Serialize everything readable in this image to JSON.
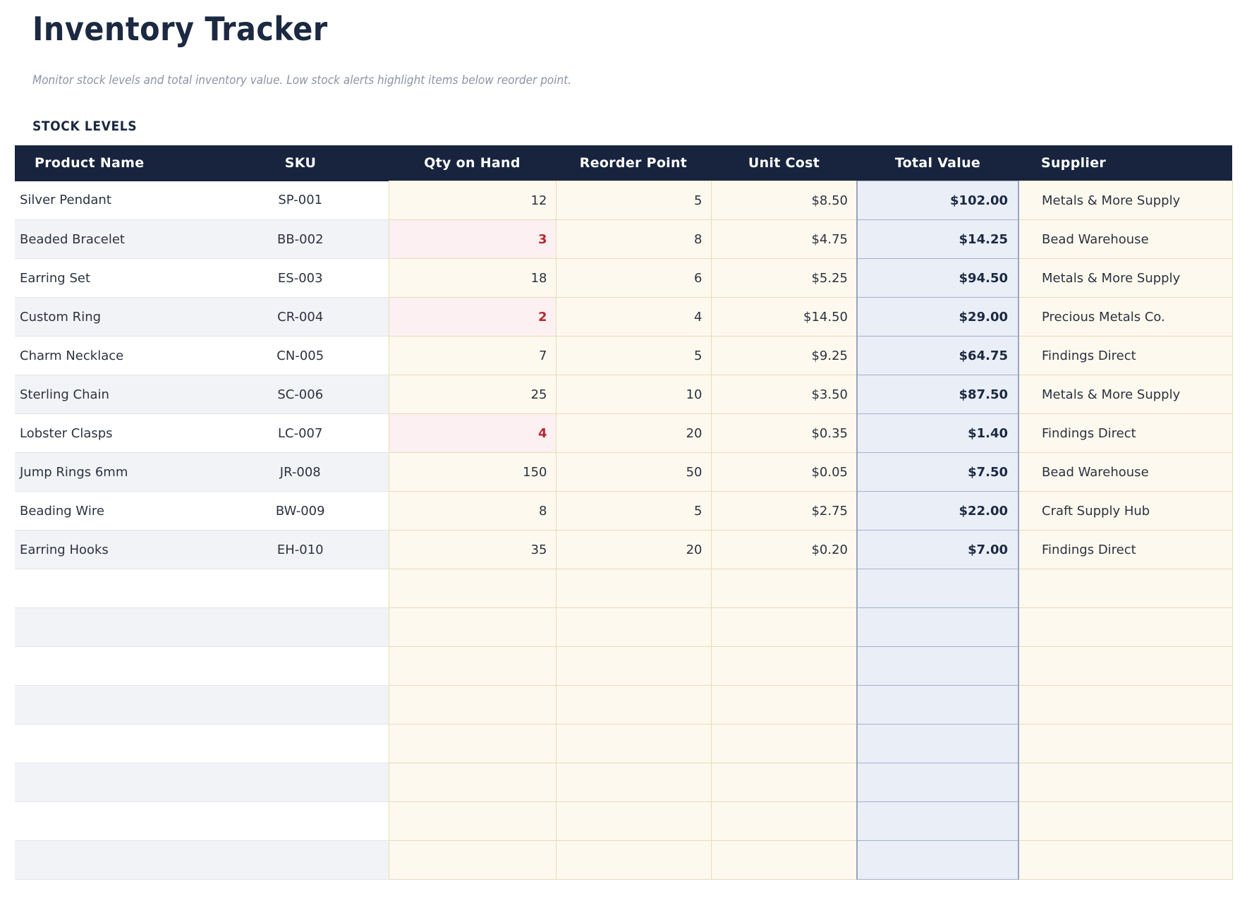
{
  "page": {
    "title": "Inventory Tracker",
    "subtitle": "Monitor stock levels and total inventory value. Low stock alerts highlight items below reorder point.",
    "section_title": "STOCK LEVELS"
  },
  "table": {
    "columns": [
      "Product Name",
      "SKU",
      "Qty on Hand",
      "Reorder Point",
      "Unit Cost",
      "Total Value",
      "Supplier"
    ],
    "rows": [
      {
        "product": "Silver Pendant",
        "sku": "SP-001",
        "qty": "12",
        "reorder": "5",
        "unit_cost": "$8.50",
        "total_value": "$102.00",
        "supplier": "Metals & More Supply",
        "low_stock": false
      },
      {
        "product": "Beaded Bracelet",
        "sku": "BB-002",
        "qty": "3",
        "reorder": "8",
        "unit_cost": "$4.75",
        "total_value": "$14.25",
        "supplier": "Bead Warehouse",
        "low_stock": true
      },
      {
        "product": "Earring Set",
        "sku": "ES-003",
        "qty": "18",
        "reorder": "6",
        "unit_cost": "$5.25",
        "total_value": "$94.50",
        "supplier": "Metals & More Supply",
        "low_stock": false
      },
      {
        "product": "Custom Ring",
        "sku": "CR-004",
        "qty": "2",
        "reorder": "4",
        "unit_cost": "$14.50",
        "total_value": "$29.00",
        "supplier": "Precious Metals Co.",
        "low_stock": true
      },
      {
        "product": "Charm Necklace",
        "sku": "CN-005",
        "qty": "7",
        "reorder": "5",
        "unit_cost": "$9.25",
        "total_value": "$64.75",
        "supplier": "Findings Direct",
        "low_stock": false
      },
      {
        "product": "Sterling Chain",
        "sku": "SC-006",
        "qty": "25",
        "reorder": "10",
        "unit_cost": "$3.50",
        "total_value": "$87.50",
        "supplier": "Metals & More Supply",
        "low_stock": false
      },
      {
        "product": "Lobster Clasps",
        "sku": "LC-007",
        "qty": "4",
        "reorder": "20",
        "unit_cost": "$0.35",
        "total_value": "$1.40",
        "supplier": "Findings Direct",
        "low_stock": true
      },
      {
        "product": "Jump Rings 6mm",
        "sku": "JR-008",
        "qty": "150",
        "reorder": "50",
        "unit_cost": "$0.05",
        "total_value": "$7.50",
        "supplier": "Bead Warehouse",
        "low_stock": false
      },
      {
        "product": "Beading Wire",
        "sku": "BW-009",
        "qty": "8",
        "reorder": "5",
        "unit_cost": "$2.75",
        "total_value": "$22.00",
        "supplier": "Craft Supply Hub",
        "low_stock": false
      },
      {
        "product": "Earring Hooks",
        "sku": "EH-010",
        "qty": "35",
        "reorder": "20",
        "unit_cost": "$0.20",
        "total_value": "$7.00",
        "supplier": "Findings Direct",
        "low_stock": false
      }
    ],
    "empty_row_count": 8
  },
  "colors": {
    "header_bg": "#18243e",
    "title_text": "#1b2942",
    "subtitle_text": "#8b94a5",
    "body_text": "#2b3240",
    "zebra_row_bg": "#f2f3f6",
    "numeric_columns_bg": "#fdf9ee",
    "numeric_columns_border": "#e6dcba",
    "low_stock_bg": "#fcf0f2",
    "low_stock_text": "#b5282e",
    "total_column_bg": "#eaeef7",
    "total_column_border": "#99a5c4",
    "total_value_text": "#1b2942"
  }
}
